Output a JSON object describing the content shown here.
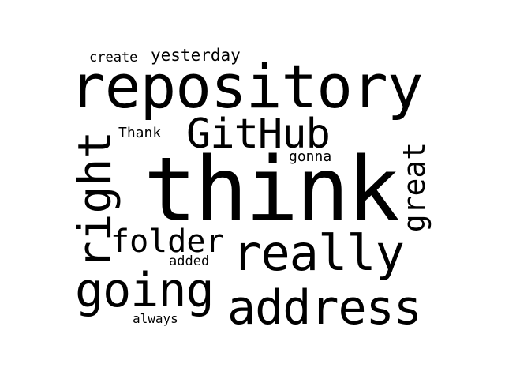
{
  "words": {
    "repository": "repository",
    "think": "think",
    "github": "GitHub",
    "really": "really",
    "address": "address",
    "going": "going",
    "right": "right",
    "folder": "folder",
    "great": "great",
    "yesterday": "yesterday",
    "create": "create",
    "thank": "Thank",
    "gonna": "gonna",
    "added": "added",
    "always": "always"
  },
  "colors": {
    "background": "#ffffff",
    "text": "#000000"
  }
}
